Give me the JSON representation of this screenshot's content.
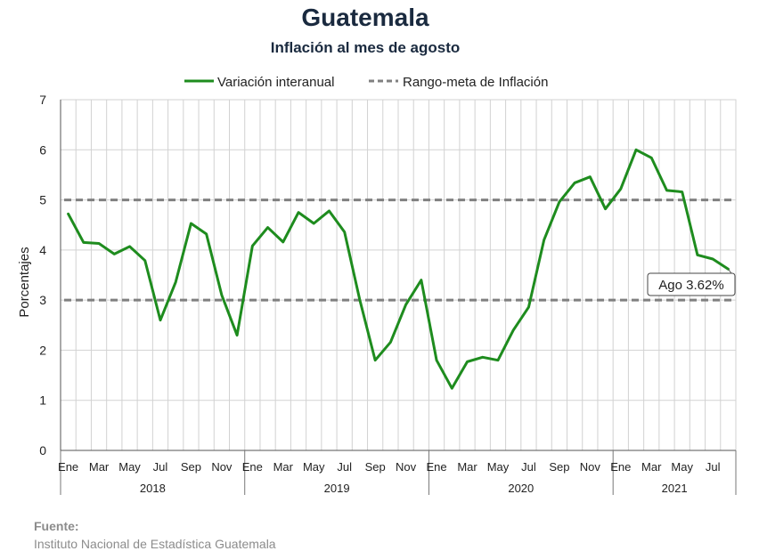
{
  "title": "Guatemala",
  "subtitle": "Inflación al mes de agosto",
  "source": {
    "label": "Fuente:",
    "text": "Instituto Nacional de Estadística Guatemala"
  },
  "chart_data": {
    "type": "line",
    "ylabel": "Porcentajes",
    "ylim": [
      0,
      7
    ],
    "yticks": [
      0,
      1,
      2,
      3,
      4,
      5,
      6,
      7
    ],
    "grid": true,
    "legend_position": "top",
    "x_month_labels": [
      "Ene",
      "Mar",
      "May",
      "Jul",
      "Sep",
      "Nov",
      "Ene",
      "Mar",
      "May",
      "Jul",
      "Sep",
      "Nov",
      "Ene",
      "Mar",
      "May",
      "Jul",
      "Sep",
      "Nov",
      "Ene",
      "Mar",
      "May",
      "Jul"
    ],
    "x_year_labels": [
      "2018",
      "2019",
      "2020",
      "2021"
    ],
    "series": [
      {
        "name": "Variación interanual",
        "color": "#1e8c1e",
        "style": "solid",
        "values": [
          4.72,
          4.15,
          4.13,
          3.92,
          4.07,
          3.79,
          2.6,
          3.36,
          4.53,
          4.32,
          3.1,
          2.3,
          4.08,
          4.45,
          4.16,
          4.75,
          4.53,
          4.78,
          4.36,
          3.0,
          1.8,
          2.16,
          2.91,
          3.4,
          1.8,
          1.24,
          1.77,
          1.86,
          1.8,
          2.4,
          2.86,
          4.2,
          4.96,
          5.34,
          5.46,
          4.82,
          5.22,
          6.0,
          5.84,
          5.19,
          5.16,
          3.9,
          3.82,
          3.62
        ]
      },
      {
        "name": "Rango-meta de Inflación",
        "color": "#808080",
        "style": "dashed",
        "values": [
          3,
          5
        ]
      }
    ],
    "annotation": "Ago 3.62%"
  }
}
